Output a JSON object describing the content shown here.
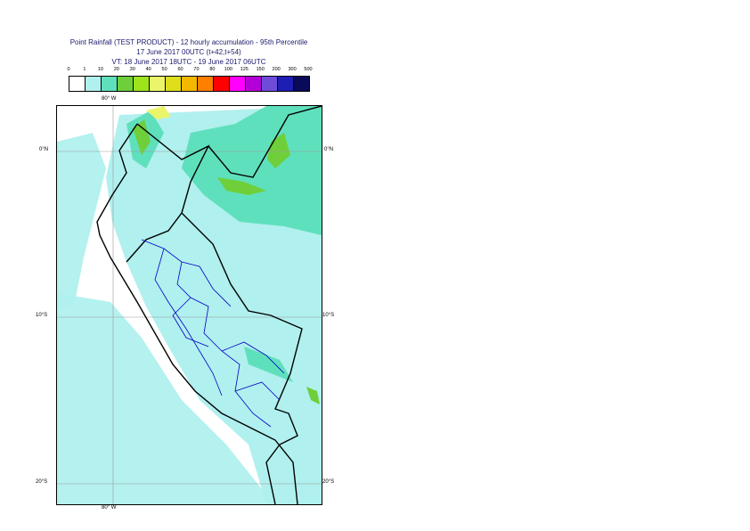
{
  "title": {
    "line1": "Point Rainfall (TEST PRODUCT) - 12 hourly accumulation - 95th Percentile",
    "line2": "17 June 2017 00UTC (t+42,t+54)",
    "line3": "VT: 18 June 2017 18UTC - 19 June 2017 06UTC"
  },
  "legend": {
    "labels": [
      "0",
      "1",
      "10",
      "20",
      "30",
      "40",
      "50",
      "60",
      "70",
      "80",
      "100",
      "125",
      "150",
      "200",
      "300",
      "500"
    ],
    "colors": [
      "#ffffff",
      "#b0f0ee",
      "#5fe0bc",
      "#6fcf3a",
      "#9ee31c",
      "#eaf56a",
      "#dede1a",
      "#f5b800",
      "#ff7f00",
      "#ff0000",
      "#ff00ff",
      "#b400d8",
      "#6f4bd9",
      "#1e1eb4",
      "#0a0a5a"
    ]
  },
  "map": {
    "top_left_lon": "80° W",
    "bottom_left_lon": "80° W",
    "lat_labels_left": [
      "0°N",
      "10°S",
      "20°S"
    ],
    "lat_labels_right": [
      "0°N",
      "10°S",
      "20°S"
    ],
    "colors": {
      "light": "#b0f0ee",
      "medium": "#5fe0bc",
      "green": "#6fcf3a",
      "yellow": "#eaf56a",
      "border": "#000000",
      "regions": "#0000c8",
      "grid": "#9a9a9a"
    }
  }
}
